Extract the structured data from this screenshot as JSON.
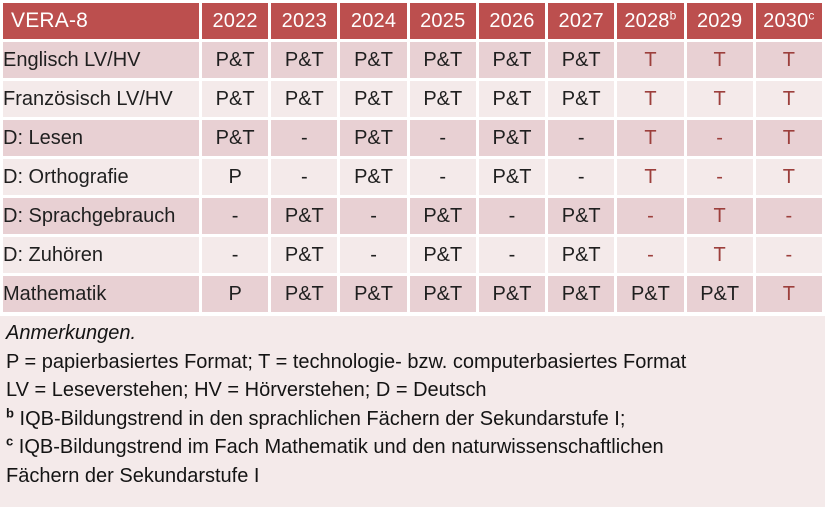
{
  "colors": {
    "header_bg": "#bc4f4e",
    "header_text": "#ffffff",
    "row_dark": "#e8d0d3",
    "row_light": "#f4eaea",
    "accent_red_text": "#9c3f3c",
    "body_text": "#1f1f1f",
    "notes_bg": "#f4eaea"
  },
  "table": {
    "title": "VERA-8",
    "columns": [
      {
        "label": "2022",
        "sup": ""
      },
      {
        "label": "2023",
        "sup": ""
      },
      {
        "label": "2024",
        "sup": ""
      },
      {
        "label": "2025",
        "sup": ""
      },
      {
        "label": "2026",
        "sup": ""
      },
      {
        "label": "2027",
        "sup": ""
      },
      {
        "label": "2028",
        "sup": "b"
      },
      {
        "label": "2029",
        "sup": ""
      },
      {
        "label": "2030",
        "sup": "c"
      }
    ],
    "rows": [
      {
        "label": "Englisch LV/HV",
        "values": [
          "P&T",
          "P&T",
          "P&T",
          "P&T",
          "P&T",
          "P&T",
          "T",
          "T",
          "T"
        ],
        "red": [
          false,
          false,
          false,
          false,
          false,
          false,
          true,
          true,
          true
        ]
      },
      {
        "label": "Französisch LV/HV",
        "values": [
          "P&T",
          "P&T",
          "P&T",
          "P&T",
          "P&T",
          "P&T",
          "T",
          "T",
          "T"
        ],
        "red": [
          false,
          false,
          false,
          false,
          false,
          false,
          true,
          true,
          true
        ]
      },
      {
        "label": "D: Lesen",
        "values": [
          "P&T",
          "-",
          "P&T",
          "-",
          "P&T",
          "-",
          "T",
          "-",
          "T"
        ],
        "red": [
          false,
          false,
          false,
          false,
          false,
          false,
          true,
          true,
          true
        ]
      },
      {
        "label": "D: Orthografie",
        "values": [
          "P",
          "-",
          "P&T",
          "-",
          "P&T",
          "-",
          "T",
          "-",
          "T"
        ],
        "red": [
          false,
          false,
          false,
          false,
          false,
          false,
          true,
          true,
          true
        ]
      },
      {
        "label": "D: Sprachgebrauch",
        "values": [
          "-",
          "P&T",
          "-",
          "P&T",
          "-",
          "P&T",
          "-",
          "T",
          "-"
        ],
        "red": [
          false,
          false,
          false,
          false,
          false,
          false,
          true,
          true,
          true
        ]
      },
      {
        "label": "D: Zuhören",
        "values": [
          "-",
          "P&T",
          "-",
          "P&T",
          "-",
          "P&T",
          "-",
          "T",
          "-"
        ],
        "red": [
          false,
          false,
          false,
          false,
          false,
          false,
          true,
          true,
          true
        ]
      },
      {
        "label": "Mathematik",
        "values": [
          "P",
          "P&T",
          "P&T",
          "P&T",
          "P&T",
          "P&T",
          "P&T",
          "P&T",
          "T"
        ],
        "red": [
          false,
          false,
          false,
          false,
          false,
          false,
          false,
          false,
          true
        ]
      }
    ]
  },
  "notes": {
    "heading": "Anmerkungen.",
    "lines": [
      {
        "sup": "",
        "text": "P = papierbasiertes Format; T = technologie- bzw. computerbasiertes Format",
        "text2": ""
      },
      {
        "sup": "",
        "text": "LV = Leseverstehen; HV = Hörverstehen; D = Deutsch",
        "text2": ""
      },
      {
        "sup": "b",
        "text": "IQB-Bildungstrend in den sprachlichen Fächern der Sekundarstufe I;",
        "text2": ""
      },
      {
        "sup": "c",
        "text": "IQB-Bildungstrend im Fach Mathematik und den naturwissenschaftlichen",
        "text2": "Fächern der Sekundarstufe I"
      }
    ]
  }
}
